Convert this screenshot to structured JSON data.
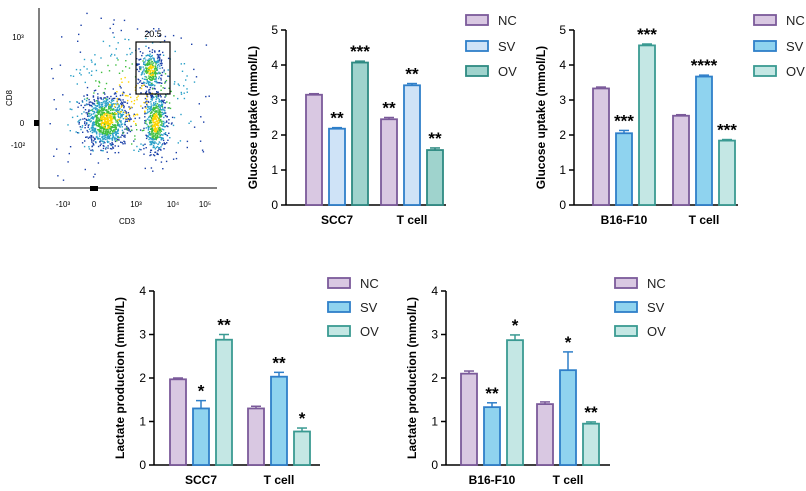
{
  "colors": {
    "nc_fill": "#d9c8e2",
    "nc_edge": "#7b5a9a",
    "sv_fill_1": "#cfe3f7",
    "sv_edge_1": "#2f7fc9",
    "ov_fill_1": "#9fd3cd",
    "ov_edge_1": "#2e8a82",
    "sv_fill_2": "#8fd3ef",
    "sv_edge_2": "#2f7fc9",
    "ov_fill_2": "#c4e7e4",
    "ov_edge_2": "#3a9a92"
  },
  "flow": {
    "type": "scatter",
    "xlabel": "CD3",
    "ylabel": "CD8",
    "gate_value": "20.5",
    "x_ticks": [
      "-10³",
      "0",
      "10³",
      "10⁴",
      "10⁵"
    ],
    "y_ticks": [
      "10³",
      "0",
      "-10²"
    ]
  },
  "chart_data": [
    {
      "type": "bar",
      "ylabel": "Glucose uptake (mmol/L)",
      "ylim": [
        0,
        5
      ],
      "yticks": [
        "0",
        "1",
        "2",
        "3",
        "4",
        "5"
      ],
      "categories": [
        "SCC7",
        "T cell"
      ],
      "legend": [
        "NC",
        "SV",
        "OV"
      ],
      "series": [
        {
          "name": "NC",
          "values": [
            3.15,
            2.45
          ],
          "errors": [
            0.03,
            0.05
          ]
        },
        {
          "name": "SV",
          "values": [
            2.18,
            3.42
          ],
          "errors": [
            0.03,
            0.05
          ]
        },
        {
          "name": "OV",
          "values": [
            4.07,
            1.57
          ],
          "errors": [
            0.04,
            0.06
          ]
        }
      ],
      "significance": [
        [
          "",
          "**"
        ],
        [
          "**",
          "**"
        ],
        [
          "***",
          "**"
        ]
      ]
    },
    {
      "type": "bar",
      "ylabel": "Glucose uptake (mmol/L)",
      "ylim": [
        0,
        5
      ],
      "yticks": [
        "0",
        "1",
        "2",
        "3",
        "4",
        "5"
      ],
      "categories": [
        "B16-F10",
        "T cell"
      ],
      "legend": [
        "NC",
        "SV",
        "OV"
      ],
      "series": [
        {
          "name": "NC",
          "values": [
            3.33,
            2.55
          ],
          "errors": [
            0.04,
            0.03
          ]
        },
        {
          "name": "SV",
          "values": [
            2.05,
            3.67
          ],
          "errors": [
            0.08,
            0.04
          ]
        },
        {
          "name": "OV",
          "values": [
            4.56,
            1.84
          ],
          "errors": [
            0.04,
            0.03
          ]
        }
      ],
      "significance": [
        [
          "",
          ""
        ],
        [
          "***",
          "****"
        ],
        [
          "***",
          "***"
        ]
      ]
    },
    {
      "type": "bar",
      "ylabel": "Lactate production (mmol/L)",
      "ylim": [
        0,
        4
      ],
      "yticks": [
        "0",
        "1",
        "2",
        "3",
        "4"
      ],
      "categories": [
        "SCC7",
        "T cell"
      ],
      "legend": [
        "NC",
        "SV",
        "OV"
      ],
      "series": [
        {
          "name": "NC",
          "values": [
            1.97,
            1.3
          ],
          "errors": [
            0.03,
            0.05
          ]
        },
        {
          "name": "SV",
          "values": [
            1.3,
            2.03
          ],
          "errors": [
            0.18,
            0.1
          ]
        },
        {
          "name": "OV",
          "values": [
            2.88,
            0.77
          ],
          "errors": [
            0.12,
            0.08
          ]
        }
      ],
      "significance": [
        [
          "",
          ""
        ],
        [
          "*",
          "**"
        ],
        [
          "**",
          "*"
        ]
      ]
    },
    {
      "type": "bar",
      "ylabel": "Lactate production (mmol/L)",
      "ylim": [
        0,
        4
      ],
      "yticks": [
        "0",
        "1",
        "2",
        "3",
        "4"
      ],
      "categories": [
        "B16-F10",
        "T cell"
      ],
      "legend": [
        "NC",
        "SV",
        "OV"
      ],
      "series": [
        {
          "name": "NC",
          "values": [
            2.1,
            1.4
          ],
          "errors": [
            0.06,
            0.05
          ]
        },
        {
          "name": "SV",
          "values": [
            1.33,
            2.18
          ],
          "errors": [
            0.1,
            0.42
          ]
        },
        {
          "name": "OV",
          "values": [
            2.87,
            0.95
          ],
          "errors": [
            0.12,
            0.04
          ]
        }
      ],
      "significance": [
        [
          "",
          ""
        ],
        [
          "**",
          "*"
        ],
        [
          "*",
          "**"
        ]
      ]
    }
  ]
}
